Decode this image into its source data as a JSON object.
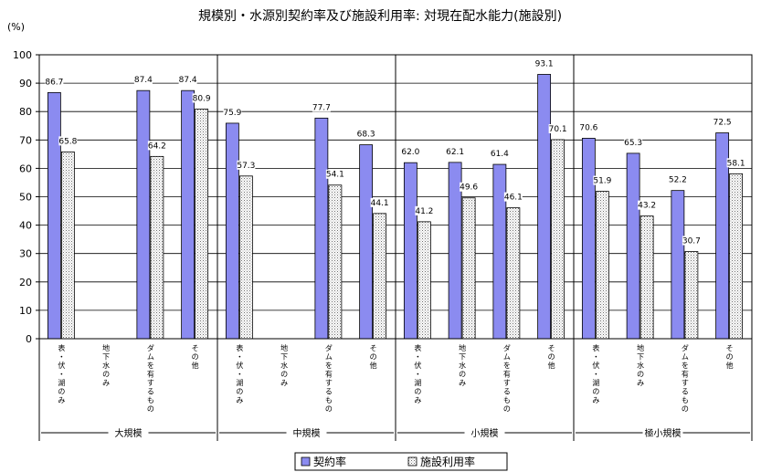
{
  "chart_data": {
    "type": "bar",
    "title": "規模別・水源別契約率及び施設利用率: 対現在配水能力(施設別)",
    "ylabel": "(%)",
    "ylim": [
      0,
      100
    ],
    "yticks": [
      0,
      10,
      20,
      30,
      40,
      50,
      60,
      70,
      80,
      90,
      100
    ],
    "grid": true,
    "legend_position": "bottom",
    "categories": [
      "表・伏・湖のみ",
      "地下水のみ",
      "ダムを有するもの",
      "その他",
      "表・伏・湖のみ",
      "地下水のみ",
      "ダムを有するもの",
      "その他",
      "表・伏・湖のみ",
      "地下水のみ",
      "ダムを有するもの",
      "その他",
      "表・伏・湖のみ",
      "地下水のみ",
      "ダムを有するもの",
      "その他"
    ],
    "groups": [
      "大規模",
      "中規模",
      "小規模",
      "極小規模"
    ],
    "series": [
      {
        "name": "契約率",
        "color": "#8b8bf0",
        "values": [
          86.7,
          null,
          87.4,
          87.4,
          75.9,
          null,
          77.7,
          68.3,
          62.0,
          62.1,
          61.4,
          93.1,
          70.6,
          65.3,
          52.2,
          72.5
        ],
        "labels": [
          "86.7",
          "",
          "87.4",
          "87.4",
          "75.9",
          "",
          "77.7",
          "68.3",
          "62.0",
          "62.1",
          "61.4",
          "93.1",
          "70.6",
          "65.3",
          "52.2",
          "72.5"
        ]
      },
      {
        "name": "施設利用率",
        "color": "#ffffff",
        "pattern": "dots",
        "values": [
          65.8,
          null,
          64.2,
          80.9,
          57.3,
          null,
          54.1,
          44.1,
          41.2,
          49.6,
          46.1,
          70.1,
          51.9,
          43.2,
          30.7,
          58.1
        ],
        "labels": [
          "65.8",
          "",
          "64.2",
          "80.9",
          "57.3",
          "",
          "54.1",
          "44.1",
          "41.2",
          "49.6",
          "46.1",
          "70.1",
          "51.9",
          "43.2",
          "30.7",
          "58.1"
        ]
      }
    ]
  }
}
